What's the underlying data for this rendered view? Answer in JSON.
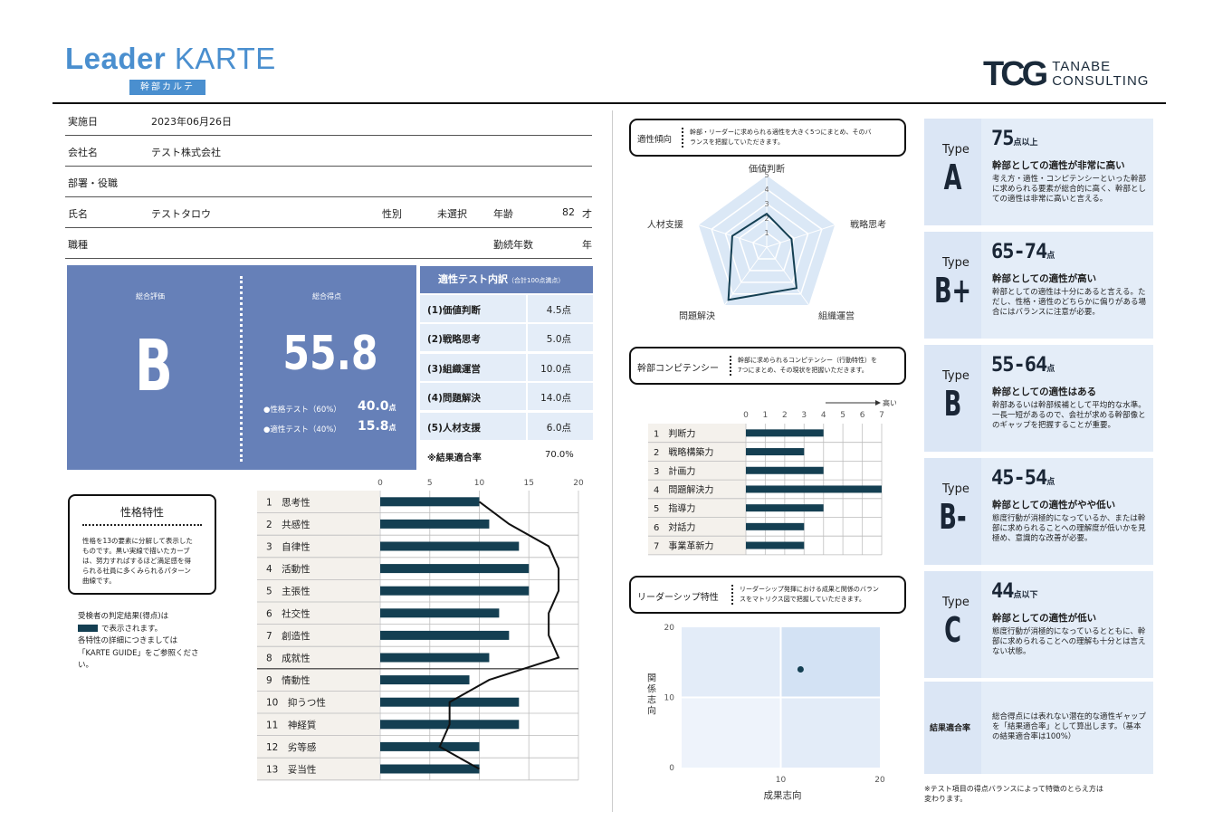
{
  "header": {
    "title_bold": "Leader",
    "title_light": "KARTE",
    "subtitle": "幹部カルテ",
    "company_logo_mark": "TCG",
    "company_logo_line1": "TANABE",
    "company_logo_line2": "CONSULTING"
  },
  "info": {
    "date_label": "実施日",
    "date_value": "2023年06月26日",
    "company_label": "会社名",
    "company_value": "テスト株式会社",
    "dept_label": "部署・役職",
    "name_label": "氏名",
    "name_value": "テストタロウ",
    "gender_label": "性別",
    "gender_value": "未選択",
    "age_label": "年齢",
    "age_value": "82",
    "age_unit": "才",
    "job_label": "職種",
    "tenure_label": "勤続年数",
    "tenure_unit": "年"
  },
  "score": {
    "overall_label": "総合評価",
    "overall_grade": "B",
    "total_label": "総合得点",
    "total_value": "55.8",
    "personality_label": "●性格テスト（60%）",
    "personality_value": "40.0",
    "personality_unit": "点",
    "aptitude_label": "●適性テスト（40%）",
    "aptitude_value": "15.8",
    "aptitude_unit": "点"
  },
  "breakdown": {
    "title": "適性テスト内訳",
    "title_note": "（合計100点満点）",
    "rows": [
      {
        "name": "(1)価値判断",
        "value": "4.5点"
      },
      {
        "name": "(2)戦略思考",
        "value": "5.0点"
      },
      {
        "name": "(3)組織運営",
        "value": "10.0点"
      },
      {
        "name": "(4)問題解決",
        "value": "14.0点"
      },
      {
        "name": "(5)人材支援",
        "value": "6.0点"
      }
    ],
    "match_label": "※結果適合率",
    "match_value": "70.0%"
  },
  "personality_box": {
    "title": "性格特性",
    "desc": [
      "性格を13の要素に分解して表示した",
      "ものです。黒い実線で描いたカーブ",
      "は、努力すればするほど満足感を得",
      "られる社員に多くみられるパターン",
      "曲線です。"
    ],
    "note1": "受検者の判定結果(得点)は",
    "note2": "で表示されます。",
    "note3": "各特性の詳細につきましては",
    "note4": "「KARTE GUIDE」をご参照くださ",
    "note5": "い。"
  },
  "aptitude_tendency": {
    "title": "適性傾向",
    "desc1": "幹部・リーダーに求められる適性を大きく5つにまとめ、そのバ",
    "desc2": "ランスを把握していただきます。"
  },
  "competency": {
    "title": "幹部コンピテンシー",
    "desc1": "幹部に求められるコンピテンシー（行動特性）を",
    "desc2": "7つにまとめ、その現状を把握いただきます。",
    "high_label": "高い"
  },
  "leadership": {
    "title": "リーダーシップ特性",
    "desc1": "リーダーシップ発揮における成果と関係のバラン",
    "desc2": "スをマトリクス図で把握していただきます。"
  },
  "types": [
    {
      "word": "Type",
      "letter": "A",
      "range": "75",
      "range_unit": "点以上",
      "head": "幹部としての適性が非常に高い",
      "desc": "考え方・適性・コンピテンシーといった幹部に求められる要素が総合的に高く、幹部としての適性は非常に高いと言える。"
    },
    {
      "word": "Type",
      "letter": "B+",
      "range": "65-74",
      "range_unit": "点",
      "head": "幹部としての適性が高い",
      "desc": "幹部としての適性は十分にあると言える。ただし、性格・適性のどちらかに偏りがある場合にはバランスに注意が必要。"
    },
    {
      "word": "Type",
      "letter": "B",
      "range": "55-64",
      "range_unit": "点",
      "head": "幹部としての適性はある",
      "desc": "幹部あるいは幹部候補として平均的な水準。一長一短があるので、会社が求める幹部像とのギャップを把握することが重要。"
    },
    {
      "word": "Type",
      "letter": "B-",
      "range": "45-54",
      "range_unit": "点",
      "head": "幹部としての適性がやや低い",
      "desc": "態度行動が消極的になっているか、または幹部に求められることへの理解度が低いかを見極め、意識的な改善が必要。"
    },
    {
      "word": "Type",
      "letter": "C",
      "range": "44",
      "range_unit": "点以下",
      "head": "幹部としての適性が低い",
      "desc": "態度行動が消極的になっているとともに、幹部に求められることへの理解も十分とは言えない状態。"
    }
  ],
  "match_box": {
    "label": "結果適合率",
    "desc": "総合得点には表れない潜在的な適性ギャップを「結果適合率」として算出します。（基本の結果適合率は100%）"
  },
  "footnote1": "※テスト項目の得点バランスによって特徴のとらえ方は",
  "footnote2": "変わります。",
  "chart_data": [
    {
      "type": "bar",
      "title": "",
      "orientation": "horizontal",
      "categories": [
        "1　思考性",
        "2　共感性",
        "3　自律性",
        "4　活動性",
        "5　主張性",
        "6　社交性",
        "7　創造性",
        "8　成就性",
        "9　情動性",
        "10　抑うつ性",
        "11　神経質",
        "12　劣等感",
        "13　妥当性"
      ],
      "values": [
        10,
        11,
        14,
        15,
        15,
        12,
        13,
        11,
        9,
        14,
        14,
        10,
        10
      ],
      "reference_curve": [
        10,
        13,
        17,
        18,
        18,
        17,
        17,
        18,
        11,
        7,
        7,
        6,
        10
      ],
      "xlim": [
        0,
        20
      ],
      "xticks": [
        0,
        5,
        10,
        15,
        20
      ],
      "bar_color": "#143f52"
    },
    {
      "type": "radar",
      "title": "",
      "axes": [
        "価値判断",
        "戦略思考",
        "組織運営",
        "問題解決",
        "人材支援"
      ],
      "values": [
        2.3,
        1.8,
        3.5,
        4.5,
        2.5
      ],
      "rmax": 5,
      "rticks": [
        1,
        2,
        3,
        4,
        5
      ],
      "fill_color": "#dbe8f6",
      "line_color": "#143f52"
    },
    {
      "type": "bar",
      "title": "",
      "orientation": "horizontal",
      "categories": [
        "1　判断力",
        "2　戦略構築力",
        "3　計画力",
        "4　問題解決力",
        "5　指導力",
        "6　対話力",
        "7　事業革新力"
      ],
      "values": [
        4,
        3,
        4,
        7,
        4,
        3,
        3
      ],
      "xlim": [
        0,
        7
      ],
      "xticks": [
        0,
        1,
        2,
        3,
        4,
        5,
        6,
        7
      ],
      "bar_color": "#143f52"
    },
    {
      "type": "scatter",
      "title": "",
      "xlabel": "成果志向",
      "ylabel": "関係志向",
      "xlim": [
        0,
        20
      ],
      "ylim": [
        0,
        20
      ],
      "xticks": [
        10,
        20
      ],
      "yticks": [
        0,
        10,
        20
      ],
      "points": [
        {
          "x": 12,
          "y": 14
        }
      ],
      "point_color": "#143f52"
    }
  ]
}
